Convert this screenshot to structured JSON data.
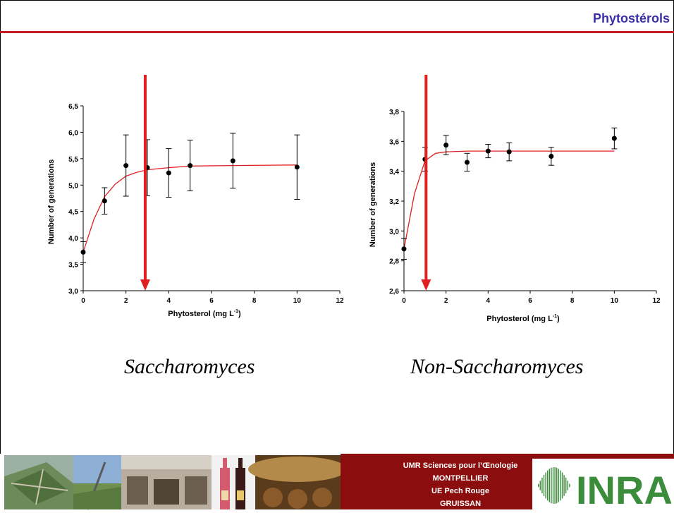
{
  "header": {
    "title": "Phytostérols"
  },
  "chart_data": [
    {
      "type": "scatter",
      "title": "",
      "xlabel": "Phytosterol (mg L",
      "xlabel_sup": "-1",
      "xlabel_end": ")",
      "ylabel": "Number of generations",
      "xlim": [
        0,
        12
      ],
      "ylim": [
        3.0,
        6.5
      ],
      "xticks": [
        "0",
        "2",
        "4",
        "6",
        "8",
        "10",
        "12"
      ],
      "yticks": [
        "3,0",
        "3,5",
        "4,0",
        "4,5",
        "5,0",
        "5,5",
        "6,0",
        "6,5"
      ],
      "points": [
        {
          "x": 0,
          "y": 3.73,
          "err": 0.2
        },
        {
          "x": 1,
          "y": 4.7,
          "err": 0.25
        },
        {
          "x": 2,
          "y": 5.37,
          "err": 0.58
        },
        {
          "x": 3,
          "y": 5.33,
          "err": 0.53
        },
        {
          "x": 4,
          "y": 5.23,
          "err": 0.46
        },
        {
          "x": 5,
          "y": 5.37,
          "err": 0.48
        },
        {
          "x": 7,
          "y": 5.46,
          "err": 0.52
        },
        {
          "x": 10,
          "y": 5.34,
          "err": 0.61
        }
      ],
      "fit": [
        [
          0,
          3.73
        ],
        [
          0.5,
          4.35
        ],
        [
          1,
          4.78
        ],
        [
          1.5,
          5.02
        ],
        [
          2,
          5.17
        ],
        [
          2.5,
          5.24
        ],
        [
          3,
          5.29
        ],
        [
          4,
          5.33
        ],
        [
          5,
          5.36
        ],
        [
          7,
          5.37
        ],
        [
          10,
          5.38
        ]
      ],
      "arrow_x": 2.9,
      "caption": "Saccharomyces"
    },
    {
      "type": "scatter",
      "title": "",
      "xlabel": "Phytosterol (mg L",
      "xlabel_sup": "-1",
      "xlabel_end": ")",
      "ylabel": "Number of generations",
      "xlim": [
        0,
        12
      ],
      "ylim": [
        2.6,
        3.8
      ],
      "xticks": [
        "0",
        "2",
        "4",
        "6",
        "8",
        "10",
        "12"
      ],
      "yticks": [
        "2,6",
        "2,8",
        "3,0",
        "3,2",
        "3,4",
        "3,6",
        "3,8"
      ],
      "points": [
        {
          "x": 0,
          "y": 2.88,
          "err": 0.07
        },
        {
          "x": 1,
          "y": 3.48,
          "err": 0.08
        },
        {
          "x": 2,
          "y": 3.575,
          "err": 0.065
        },
        {
          "x": 3,
          "y": 3.46,
          "err": 0.06
        },
        {
          "x": 4,
          "y": 3.535,
          "err": 0.045
        },
        {
          "x": 5,
          "y": 3.53,
          "err": 0.06
        },
        {
          "x": 7,
          "y": 3.5,
          "err": 0.06
        },
        {
          "x": 10,
          "y": 3.62,
          "err": 0.07
        }
      ],
      "fit": [
        [
          0,
          2.88
        ],
        [
          0.5,
          3.25
        ],
        [
          1,
          3.47
        ],
        [
          1.5,
          3.52
        ],
        [
          2,
          3.53
        ],
        [
          3,
          3.535
        ],
        [
          5,
          3.535
        ],
        [
          10,
          3.535
        ]
      ],
      "arrow_x": 1.05,
      "caption": "Non-Saccharomyces"
    }
  ],
  "footer": {
    "lab_lines": [
      "UMR Sciences pour l’Œnologie",
      "MONTPELLIER",
      "UE Pech Rouge",
      "GRUISSAN"
    ],
    "logo_text": "INRA"
  },
  "colors": {
    "fit": "#e02020",
    "arrow": "#e02020",
    "title": "#3b2fa8",
    "rule": "#c41e1e",
    "footer": "#8b0d0d",
    "logo": "#3b8c3b"
  }
}
